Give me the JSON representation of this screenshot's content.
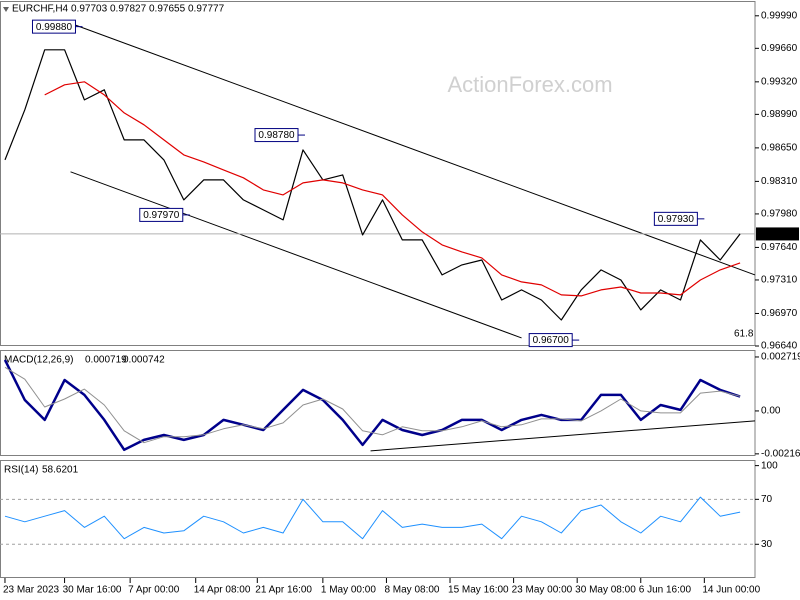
{
  "chart_data": [
    {
      "type": "line",
      "header": {
        "symbol": "EURCHF,H4",
        "ohlc": [
          0.97703,
          0.97827,
          0.97655,
          0.97777
        ]
      },
      "watermark": "ActionForex.com",
      "xlim": [
        -0.25,
        37.75
      ],
      "xticks": [
        {
          "value": 0,
          "label": "23 Mar 2023"
        },
        {
          "value": 3,
          "label": "30 Mar 16:00"
        },
        {
          "value": 6.3,
          "label": "7 Apr 00:00"
        },
        {
          "value": 9.6,
          "label": "14 Apr 08:00"
        },
        {
          "value": 12.7,
          "label": "21 Apr 16:00"
        },
        {
          "value": 16,
          "label": "1 May 00:00"
        },
        {
          "value": 19.2,
          "label": "8 May 08:00"
        },
        {
          "value": 22.4,
          "label": "15 May 16:00"
        },
        {
          "value": 25.6,
          "label": "23 May 00:00"
        },
        {
          "value": 28.8,
          "label": "30 May 08:00"
        },
        {
          "value": 32,
          "label": "6 Jun 16:00"
        },
        {
          "value": 35.2,
          "label": "14 Jun 00:00"
        }
      ],
      "ylim": [
        0.9664,
        1.0013
      ],
      "yticks": [
        {
          "value": 0.9999,
          "label": "0.99990"
        },
        {
          "value": 0.9966,
          "label": "0.99660"
        },
        {
          "value": 0.9932,
          "label": "0.99320"
        },
        {
          "value": 0.9899,
          "label": "0.98990"
        },
        {
          "value": 0.9865,
          "label": "0.98650"
        },
        {
          "value": 0.9831,
          "label": "0.98310"
        },
        {
          "value": 0.9798,
          "label": "0.97980"
        },
        {
          "value": 0.9764,
          "label": "0.97640"
        },
        {
          "value": 0.9731,
          "label": "0.97310"
        },
        {
          "value": 0.9697,
          "label": "0.96970"
        },
        {
          "value": 0.9664,
          "label": "0.96640"
        }
      ],
      "series": [
        {
          "color": "#000000",
          "values": [
            0.98528,
            0.99036,
            0.99645,
            0.99645,
            0.99137,
            0.99239,
            0.98731,
            0.98731,
            0.98528,
            0.98122,
            0.98325,
            0.98325,
            0.98122,
            0.98021,
            0.97919,
            0.9863,
            0.98325,
            0.98376,
            0.97767,
            0.98122,
            0.97716,
            0.97716,
            0.97361,
            0.97463,
            0.97513,
            0.97107,
            0.97209,
            0.97107,
            0.96904,
            0.97209,
            0.97412,
            0.9731,
            0.97006,
            0.97209,
            0.97107,
            0.97716,
            0.97513,
            0.97777
          ]
        },
        {
          "color": "#e00000",
          "values": [
            null,
            null,
            0.99188,
            0.9929,
            0.9932,
            0.99188,
            0.99005,
            0.98884,
            0.98731,
            0.98579,
            0.98508,
            0.98427,
            0.98346,
            0.98224,
            0.98173,
            0.98295,
            0.98325,
            0.98295,
            0.98224,
            0.98173,
            0.9797,
            0.97798,
            0.97666,
            0.97595,
            0.97534,
            0.97361,
            0.9729,
            0.9726,
            0.97158,
            0.97148,
            0.97209,
            0.97239,
            0.97178,
            0.97178,
            0.97158,
            0.9731,
            0.97412,
            0.97483
          ]
        }
      ],
      "trendlines": [
        {
          "color": "#000000",
          "x": [
            3.5,
            37.75
          ],
          "values": [
            0.99899,
            0.97361
          ]
        },
        {
          "color": "#000000",
          "x": [
            3.3,
            26
          ],
          "values": [
            0.98407,
            0.96722
          ]
        }
      ],
      "annotations": [
        {
          "x": 3.7,
          "value": 0.9988,
          "label": "0.99880"
        },
        {
          "x": 14.9,
          "value": 0.9878,
          "label": "0.98780"
        },
        {
          "x": 9.1,
          "value": 0.9797,
          "label": "0.97970"
        },
        {
          "x": 28.7,
          "value": 0.967,
          "label": "0.96700"
        },
        {
          "x": 35,
          "value": 0.9793,
          "label": "0.97930"
        }
      ],
      "fib_label": 61.8
    },
    {
      "type": "line",
      "indicator": "MACD(12,26,9)",
      "readings": [
        0.000719,
        0.000742
      ],
      "ylim": [
        -0.00227,
        0.00307
      ],
      "yticks": [
        0.002719,
        {
          "value": 0,
          "label": "0.00"
        },
        -0.002162
      ],
      "series": [
        {
          "color": "#00008b",
          "width": 2.5,
          "values": [
            0.00257,
            0.00055,
            -0.00045,
            0.00156,
            0.00081,
            -0.00045,
            -0.00196,
            -0.00146,
            -0.00121,
            -0.00146,
            -0.00121,
            -0.00045,
            -0.0007,
            -0.00096,
            5e-05,
            0.00106,
            0.00055,
            -0.00045,
            -0.00171,
            -0.00045,
            -0.00096,
            -0.00121,
            -0.00096,
            -0.00045,
            -0.00045,
            -0.00096,
            -0.00045,
            -0.0002,
            -0.00045,
            -0.00045,
            0.00081,
            0.00081,
            -0.00045,
            0.0003,
            5e-05,
            0.00156,
            0.00106,
            0.00072
          ]
        },
        {
          "color": "#909090",
          "width": 1,
          "values": [
            0.0022,
            0.0016,
            0.0002,
            0.0006,
            0.0011,
            0.0003,
            -0.001,
            -0.0016,
            -0.0013,
            -0.0013,
            -0.0012,
            -0.0009,
            -0.0007,
            -0.0009,
            -0.0006,
            0.0003,
            0.0006,
            0.0001,
            -0.001,
            -0.0012,
            -0.0008,
            -0.001,
            -0.001,
            -0.0008,
            -0.0005,
            -0.0008,
            -0.0007,
            -0.0004,
            -0.0004,
            -0.0005,
            0,
            0.0006,
            0,
            -0.0001,
            -0.0001,
            0.0009,
            0.001,
            0.00074
          ]
        }
      ],
      "trendlines": [
        {
          "color": "#000000",
          "x": [
            18.4,
            37.75
          ],
          "values": [
            -0.00201,
            -0.0005
          ]
        }
      ]
    },
    {
      "type": "line",
      "indicator": "RSI(14)",
      "readings": [
        58.6201
      ],
      "ylim": [
        0,
        105
      ],
      "yticks": [
        100,
        70,
        30
      ],
      "levels": [
        70,
        30
      ],
      "series": [
        {
          "color": "#1e90ff",
          "width": 1,
          "values": [
            55,
            50,
            55,
            60,
            45,
            55,
            35,
            45,
            40,
            42,
            55,
            50,
            40,
            45,
            40,
            70,
            50,
            50,
            35,
            60,
            45,
            48,
            45,
            45,
            48,
            35,
            55,
            50,
            40,
            60,
            65,
            50,
            40,
            55,
            50,
            72,
            55,
            58.62
          ]
        }
      ]
    }
  ]
}
